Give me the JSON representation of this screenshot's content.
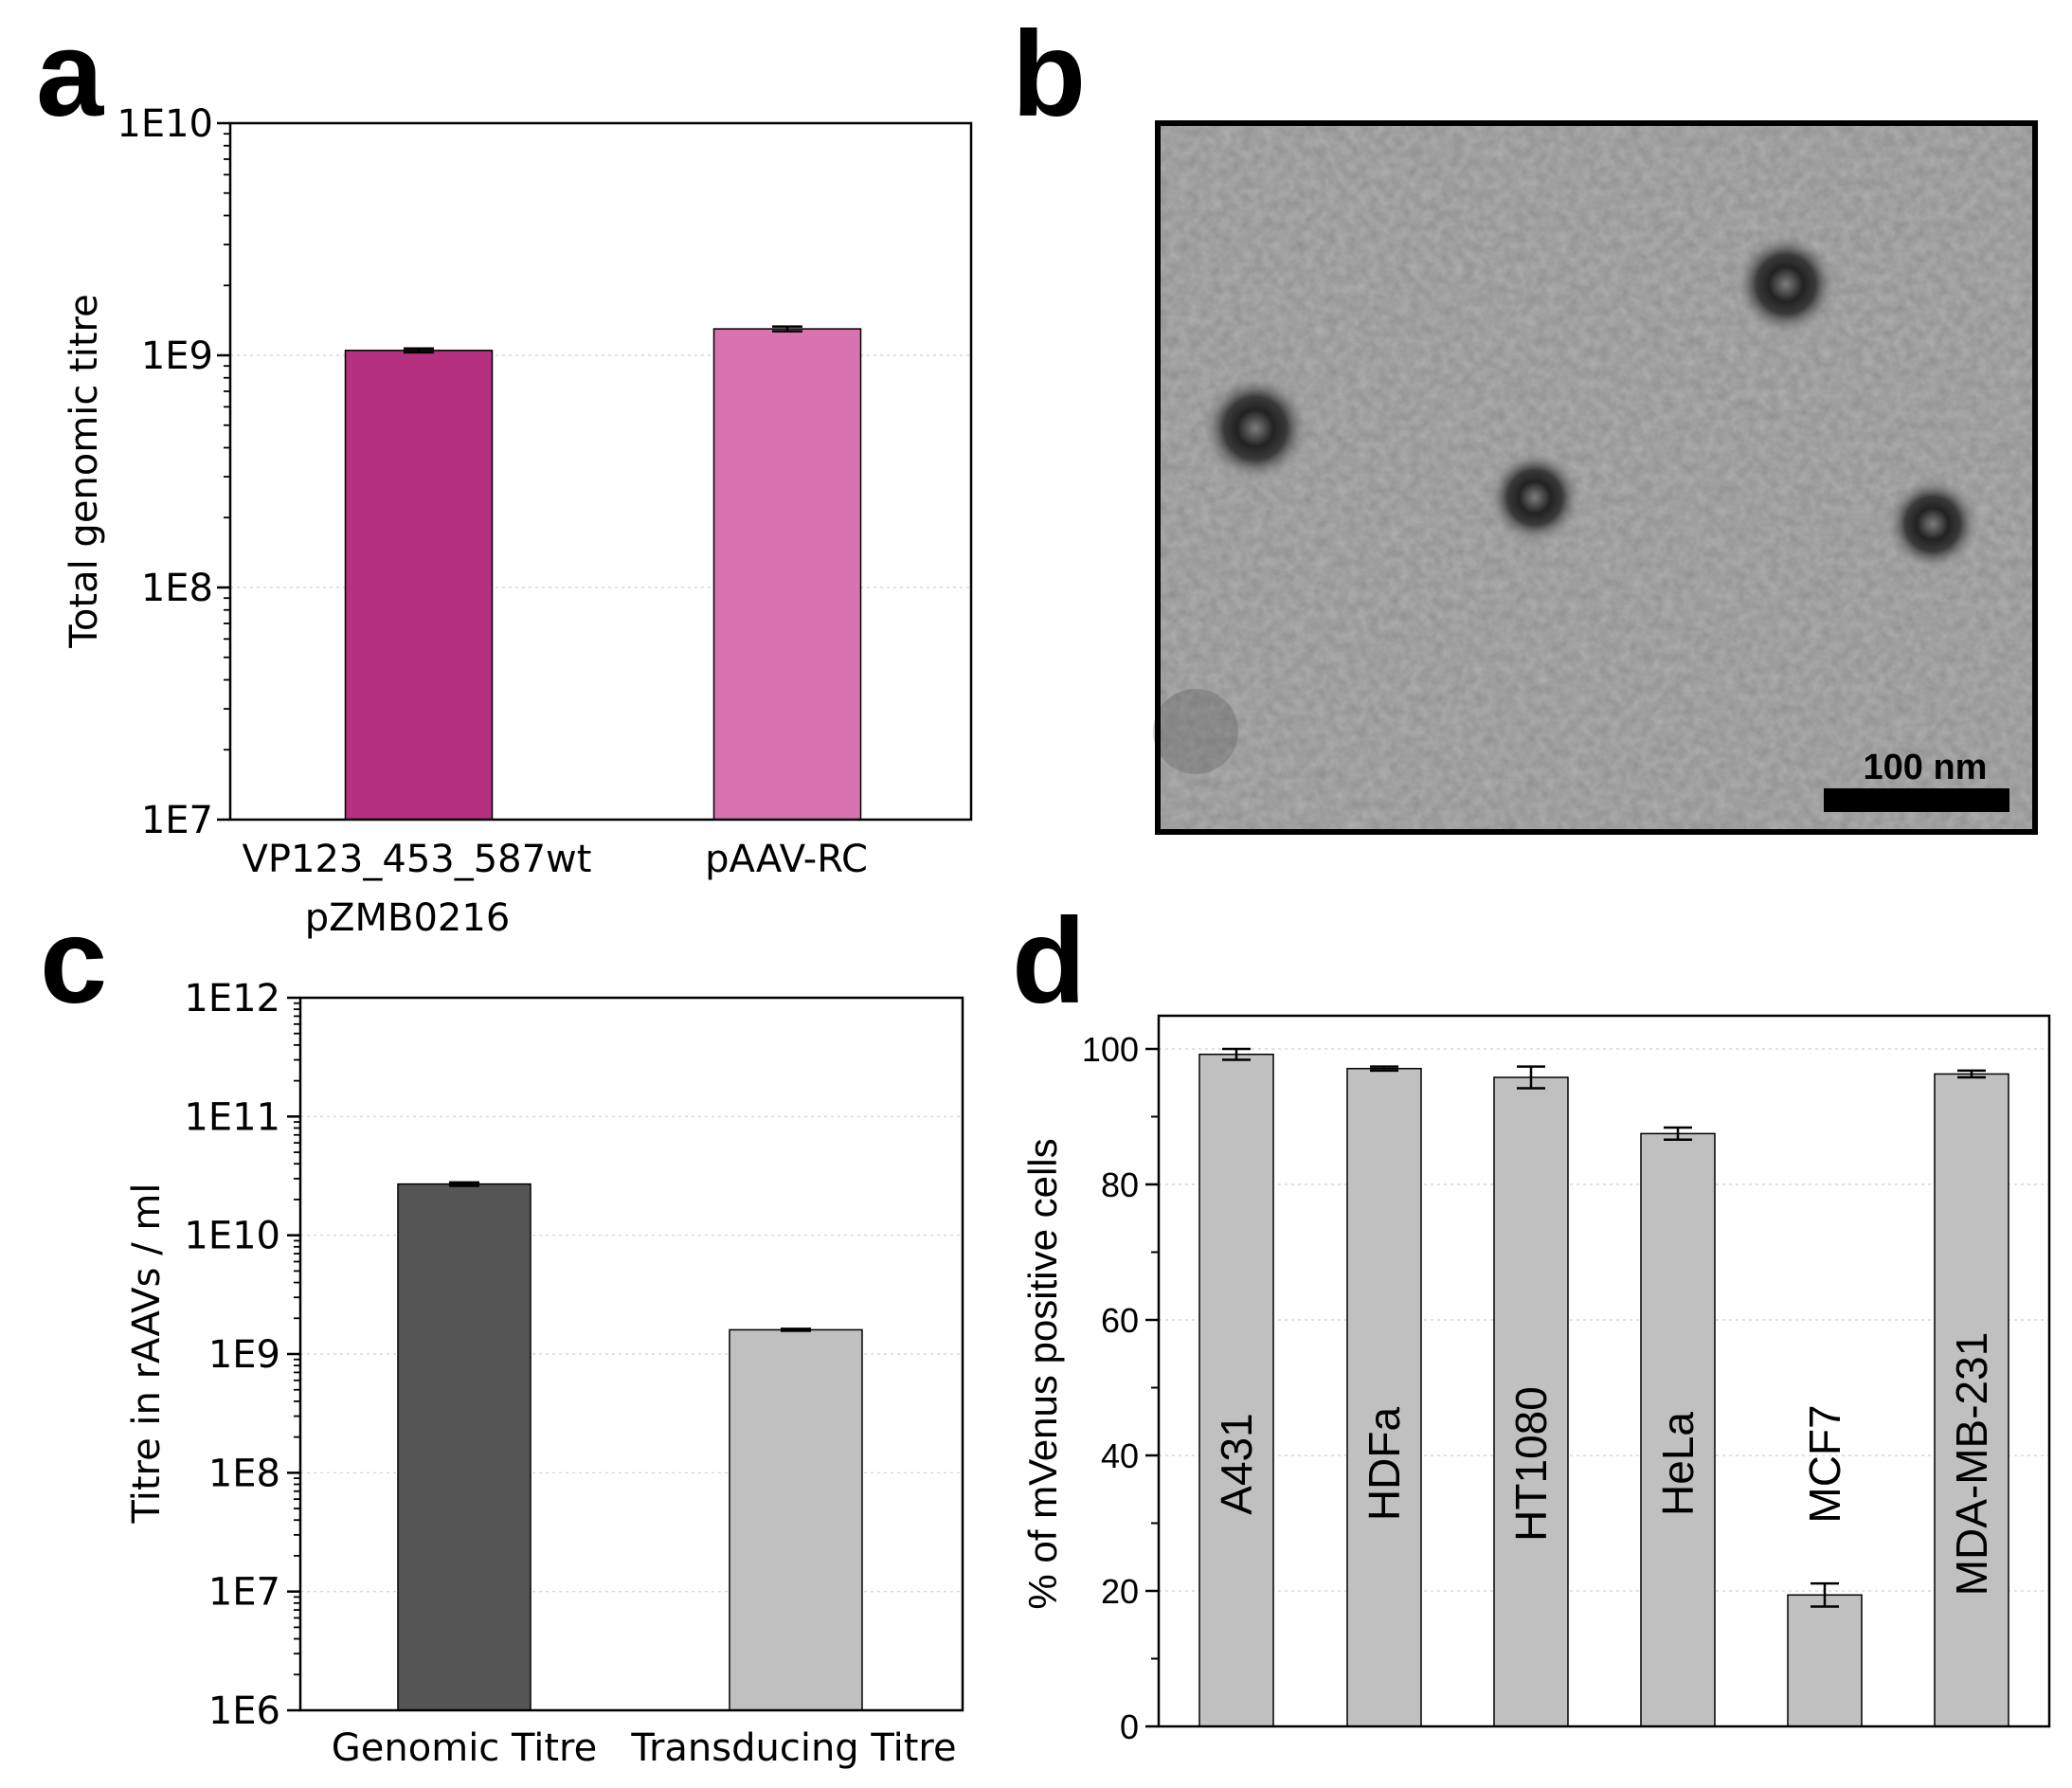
{
  "panels": {
    "a": {
      "letter": "a"
    },
    "b": {
      "letter": "b",
      "scale_bar_label": "100 nm"
    },
    "c": {
      "letter": "c"
    },
    "d": {
      "letter": "d"
    }
  },
  "colors": {
    "bar_a1": "#b5307f",
    "bar_a2": "#d873b0",
    "bar_c1": "#555555",
    "bar_c2": "#c0c0c0",
    "bar_d": "#c0c0c0"
  },
  "chart_data": [
    {
      "panel": "a",
      "type": "bar",
      "y_scale": "log",
      "ylim": [
        10000000,
        10000000000
      ],
      "yticks": [
        "1E7",
        "1E8",
        "1E9",
        "1E10"
      ],
      "ylabel": "Total genomic titre",
      "xlabel": "",
      "grid": "horizontal dashed",
      "categories": [
        {
          "line1": "VP123_453_587wt",
          "line2": "pZMB0216"
        },
        {
          "line1": "pAAV-RC",
          "line2": ""
        }
      ],
      "values": [
        1050000000,
        1300000000
      ],
      "errors": [
        20000000,
        30000000
      ]
    },
    {
      "panel": "c",
      "type": "bar",
      "y_scale": "log",
      "ylim": [
        1000000,
        1000000000000
      ],
      "yticks": [
        "1E6",
        "1E7",
        "1E8",
        "1E9",
        "1E10",
        "1E11",
        "1E12"
      ],
      "ylabel": "Titre in rAAVs / ml",
      "xlabel": "",
      "grid": "horizontal dashed",
      "categories": [
        "Genomic Titre",
        "Transducing Titre"
      ],
      "values": [
        27000000000,
        1600000000
      ],
      "errors": [
        900000000,
        30000000
      ]
    },
    {
      "panel": "d",
      "type": "bar",
      "y_scale": "linear",
      "ylim": [
        0,
        105
      ],
      "yticks": [
        "0",
        "20",
        "40",
        "60",
        "80",
        "100"
      ],
      "ylabel": "% of mVenus positive cells",
      "xlabel": "",
      "grid": "horizontal dashed",
      "categories": [
        "A431",
        "HDFa",
        "HT1080",
        "HeLa",
        "MCF7",
        "MDA-MB-231"
      ],
      "values": [
        99.2,
        97.1,
        95.8,
        87.5,
        19.4,
        96.3
      ],
      "errors": [
        0.8,
        0.3,
        1.6,
        0.9,
        1.7,
        0.5
      ]
    }
  ]
}
